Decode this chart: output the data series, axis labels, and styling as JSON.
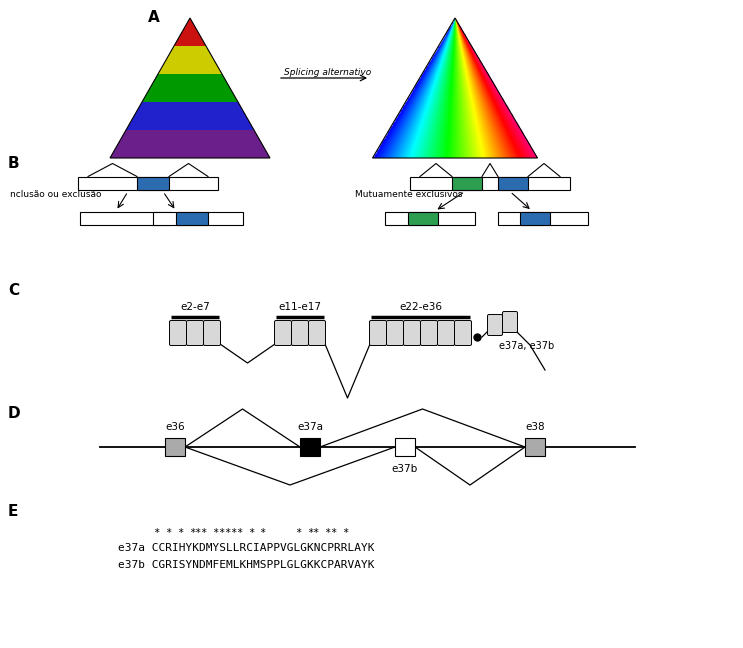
{
  "title_A": "A",
  "title_B": "B",
  "title_C": "C",
  "title_D": "D",
  "title_E": "E",
  "arrow_label": "Splicing alternativo",
  "left_label": "nclusão ou exclusão",
  "right_label": "Mutuamente exclusivos",
  "blue_color": "#2B6CB0",
  "green_color": "#2D9E4F",
  "gray_color": "#AAAAAA",
  "left_tri_colors": [
    "#6B1F8A",
    "#3333CC",
    "#007700",
    "#BBBB00",
    "#CC1111"
  ],
  "right_tri_colors_v": [
    "#7B1FA2",
    "#1565C0",
    "#006064",
    "#1B5E20",
    "#F57F17",
    "#BF360C",
    "#B71C1C",
    "#880E4F"
  ],
  "seq1": "e37a CCRIHYKDMYSLLRCIAPPVGLGKNCPRRLAYK",
  "seq2": "e37b CGRISYNDMFEMLKHMSPPLGLGKKCPARVAYK",
  "star_indices": [
    5,
    7,
    9,
    11,
    12,
    13,
    15,
    16,
    17,
    18,
    19,
    21,
    23,
    29,
    31,
    32,
    34,
    35,
    37
  ],
  "domain_labels": [
    "e2-e7",
    "e11-e17",
    "e22-e36"
  ],
  "e37_label": "e37a, e37b",
  "e36_label": "e36",
  "e37a_label": "e37a",
  "e37b_label": "e37b",
  "e38_label": "e38"
}
